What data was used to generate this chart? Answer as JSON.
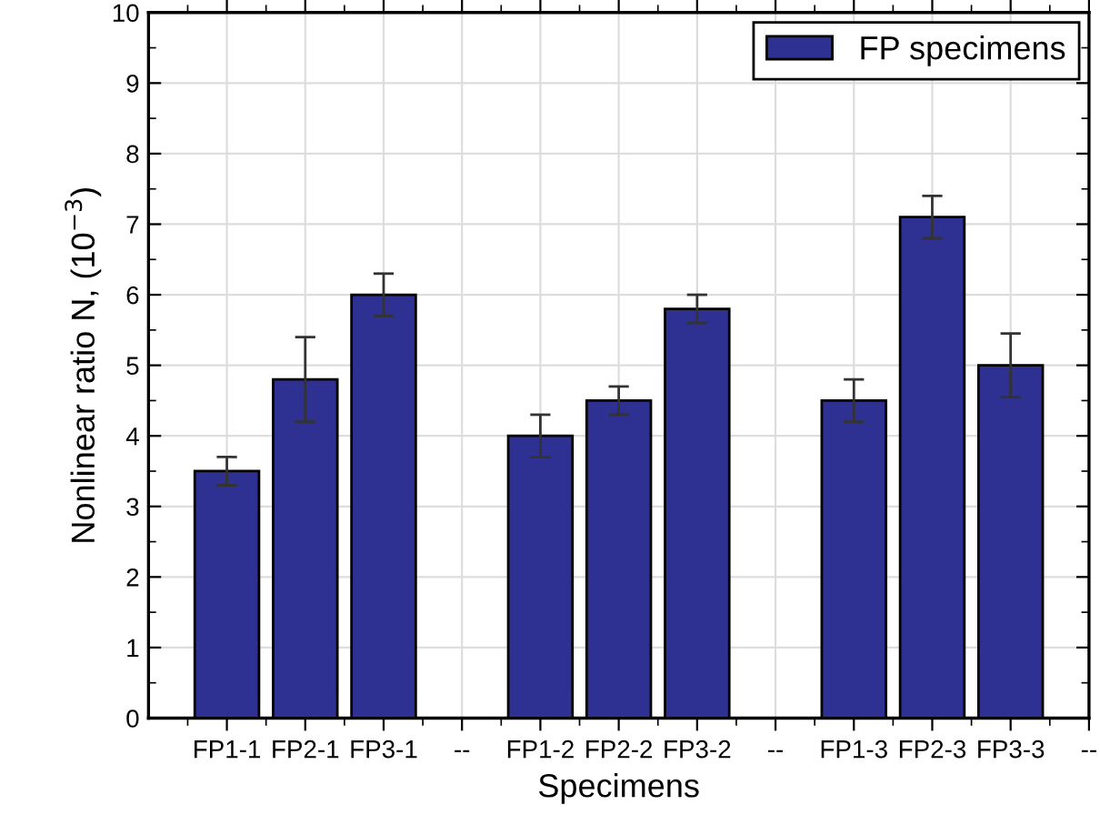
{
  "chart_data": {
    "type": "bar",
    "xlabel": "Specimens",
    "ylabel": "Nonlinear ratio N, (10$^{−3}$)",
    "categories": [
      "FP1-1",
      "FP2-1",
      "FP3-1",
      "--",
      "FP1-2",
      "FP2-2",
      "FP3-2",
      "--",
      "FP1-3",
      "FP2-3",
      "FP3-3",
      "--"
    ],
    "series": [
      {
        "name": "FP specimens",
        "color": "#2e3192",
        "values": [
          3.5,
          4.8,
          6.0,
          null,
          4.0,
          4.5,
          5.8,
          null,
          4.5,
          7.1,
          5.0,
          null
        ],
        "errors": [
          0.2,
          0.6,
          0.3,
          null,
          0.3,
          0.2,
          0.2,
          null,
          0.3,
          0.3,
          0.45,
          null
        ]
      }
    ],
    "ylim": [
      0,
      10
    ],
    "yticks": [
      0,
      1,
      2,
      3,
      4,
      5,
      6,
      7,
      8,
      9,
      10
    ],
    "grid": true,
    "legend": "top right"
  }
}
